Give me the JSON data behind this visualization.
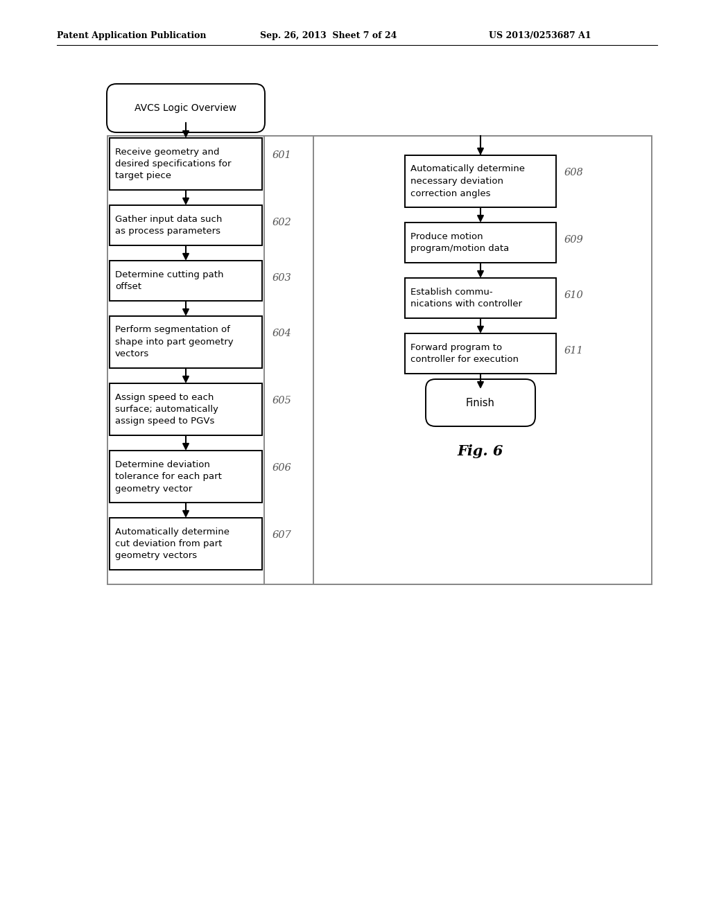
{
  "bg_color": "#ffffff",
  "header_left": "Patent Application Publication",
  "header_mid": "Sep. 26, 2013  Sheet 7 of 24",
  "header_right": "US 2013/0253687 A1",
  "fig_label": "Fig. 6",
  "left_boxes": [
    {
      "id": "601",
      "text": "Receive geometry and\ndesired specifications for\ntarget piece",
      "lines": 3
    },
    {
      "id": "602",
      "text": "Gather input data such\nas process parameters",
      "lines": 2
    },
    {
      "id": "603",
      "text": "Determine cutting path\noffset",
      "lines": 2
    },
    {
      "id": "604",
      "text": "Perform segmentation of\nshape into part geometry\nvectors",
      "lines": 3
    },
    {
      "id": "605",
      "text": "Assign speed to each\nsurface; automatically\nassign speed to PGVs",
      "lines": 3
    },
    {
      "id": "606",
      "text": "Determine deviation\ntolerance for each part\ngeometry vector",
      "lines": 3
    },
    {
      "id": "607",
      "text": "Automatically determine\ncut deviation from part\ngeometry vectors",
      "lines": 3
    }
  ],
  "right_boxes": [
    {
      "id": "608",
      "text": "Automatically determine\nnecessary deviation\ncorrection angles",
      "lines": 3
    },
    {
      "id": "609",
      "text": "Produce motion\nprogram/motion data",
      "lines": 2
    },
    {
      "id": "610",
      "text": "Establish commu-\nnications with controller",
      "lines": 2
    },
    {
      "id": "611",
      "text": "Forward program to\ncontroller for execution",
      "lines": 2
    }
  ],
  "start_label": "AVCS Logic Overview",
  "end_label": "Finish"
}
